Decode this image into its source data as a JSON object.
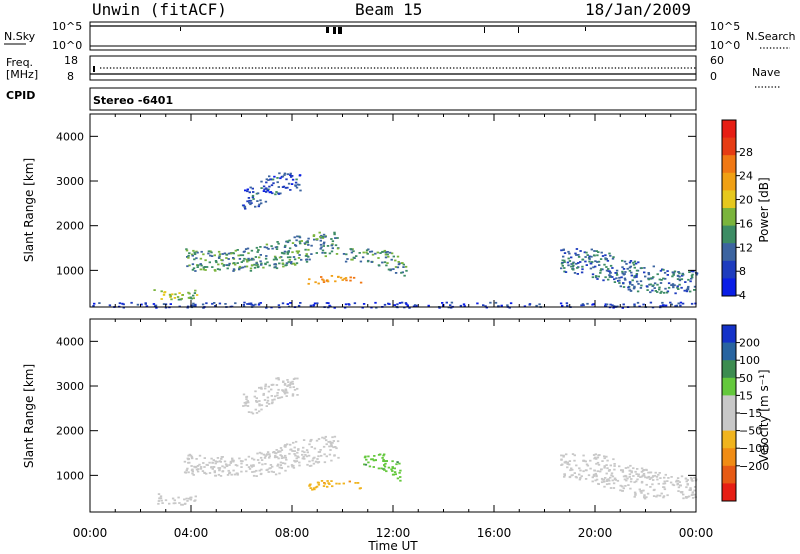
{
  "header": {
    "station": "Unwin (fitACF)",
    "beam": "Beam 15",
    "date": "18/Jan/2009"
  },
  "top_panels": {
    "nsky_label": "N.Sky",
    "nsearch_label": "N.Search",
    "nsky_ticks": [
      "10^5",
      "10^0"
    ],
    "nsearch_ticks": [
      "10^5",
      "10^0"
    ],
    "freq_label_1": "Freq.",
    "freq_label_2": "[MHz]",
    "freq_ticks": [
      "18",
      "8"
    ],
    "nave_label": "Nave",
    "nave_ticks": [
      "60",
      "0"
    ],
    "cpid_label": "CPID",
    "cpid_value": "Stereo -6401"
  },
  "chart_data": [
    {
      "type": "heatmap",
      "panel": "power",
      "xlabel": "Time UT",
      "ylabel": "Slant Range [km]",
      "x_ticks": [
        "00:00",
        "04:00",
        "08:00",
        "12:00",
        "16:00",
        "20:00",
        "00:00"
      ],
      "y_ticks": [
        1000,
        2000,
        3000,
        4000
      ],
      "xlim_hours": [
        0,
        24
      ],
      "ylim_km": [
        180,
        4500
      ],
      "colorbar": {
        "label": "Power [dB]",
        "ticks": [
          "4",
          "8",
          "12",
          "16",
          "20",
          "24",
          "28"
        ],
        "colors": [
          "#0a1ee6",
          "#1e3cbe",
          "#3c64a0",
          "#3c8c64",
          "#7ab43c",
          "#e6c81e",
          "#f0a014",
          "#f07814",
          "#e63c14",
          "#e61e14"
        ]
      },
      "echo_regions": [
        {
          "start_hr": 2.5,
          "end_hr": 4.2,
          "range_km": [
            360,
            700
          ],
          "power_db": 14
        },
        {
          "start_hr": 3.7,
          "end_hr": 9.8,
          "range_km": [
            1000,
            1900
          ],
          "power_db": 10
        },
        {
          "start_hr": 6.0,
          "end_hr": 8.3,
          "range_km": [
            2400,
            3200
          ],
          "power_db": 6
        },
        {
          "start_hr": 8.6,
          "end_hr": 10.7,
          "range_km": [
            650,
            900
          ],
          "power_db": 20
        },
        {
          "start_hr": 10.0,
          "end_hr": 12.5,
          "range_km": [
            900,
            1500
          ],
          "power_db": 10
        },
        {
          "start_hr": 18.6,
          "end_hr": 24.0,
          "range_km": [
            500,
            1500
          ],
          "power_db": 8
        },
        {
          "start_hr": 0.0,
          "end_hr": 24.0,
          "range_km": [
            180,
            300
          ],
          "power_db": 4
        }
      ]
    },
    {
      "type": "heatmap",
      "panel": "velocity",
      "xlabel": "Time UT",
      "ylabel": "Slant Range [km]",
      "x_ticks": [
        "00:00",
        "04:00",
        "08:00",
        "12:00",
        "16:00",
        "20:00",
        "00:00"
      ],
      "y_ticks": [
        1000,
        2000,
        3000,
        4000
      ],
      "xlim_hours": [
        0,
        24
      ],
      "ylim_km": [
        180,
        4500
      ],
      "colorbar": {
        "label": "Velocity [m s⁻¹]",
        "ticks": [
          "200",
          "100",
          "50",
          "15",
          "−15",
          "−50",
          "−100",
          "−200"
        ],
        "colors": [
          "#1432c8",
          "#2864a0",
          "#3c8c50",
          "#64c83c",
          "#c8c8c8",
          "#c8c8c8",
          "#f0b41e",
          "#f08c14",
          "#e65a14",
          "#e61e14"
        ]
      },
      "echo_regions": [
        {
          "start_hr": 2.5,
          "end_hr": 4.2,
          "range_km": [
            360,
            700
          ],
          "velocity_ms": 0
        },
        {
          "start_hr": 3.7,
          "end_hr": 9.8,
          "range_km": [
            1000,
            1900
          ],
          "velocity_ms": 0
        },
        {
          "start_hr": 6.0,
          "end_hr": 8.3,
          "range_km": [
            2400,
            3200
          ],
          "velocity_ms": 0
        },
        {
          "start_hr": 8.6,
          "end_hr": 10.7,
          "range_km": [
            650,
            900
          ],
          "velocity_ms": -40
        },
        {
          "start_hr": 10.8,
          "end_hr": 12.3,
          "range_km": [
            900,
            1500
          ],
          "velocity_ms": 40
        },
        {
          "start_hr": 18.6,
          "end_hr": 24.0,
          "range_km": [
            500,
            1500
          ],
          "velocity_ms": 0
        }
      ]
    }
  ]
}
